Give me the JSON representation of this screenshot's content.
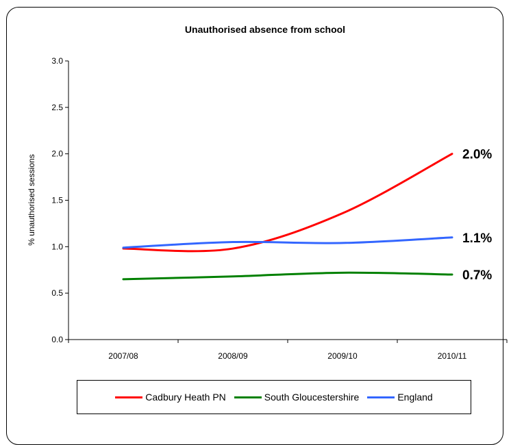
{
  "chart_data": {
    "type": "line",
    "title": "Unauthorised absence from school",
    "xlabel": "",
    "ylabel": "% unauthorised sessions",
    "categories": [
      "2007/08",
      "2008/09",
      "2009/10",
      "2010/11"
    ],
    "ylim": [
      0,
      3.0
    ],
    "yticks": [
      "0.0",
      "0.5",
      "1.0",
      "1.5",
      "2.0",
      "2.5",
      "3.0"
    ],
    "series": [
      {
        "name": "Cadbury Heath PN",
        "color": "#ff0000",
        "values": [
          0.98,
          0.98,
          1.36,
          2.0
        ],
        "end_label": "2.0%"
      },
      {
        "name": "South Gloucestershire",
        "color": "#008000",
        "values": [
          0.65,
          0.68,
          0.72,
          0.7
        ],
        "end_label": "0.7%"
      },
      {
        "name": "England",
        "color": "#3366ff",
        "values": [
          0.99,
          1.05,
          1.04,
          1.1
        ],
        "end_label": "1.1%"
      }
    ],
    "grid": false,
    "legend_position": "bottom"
  }
}
